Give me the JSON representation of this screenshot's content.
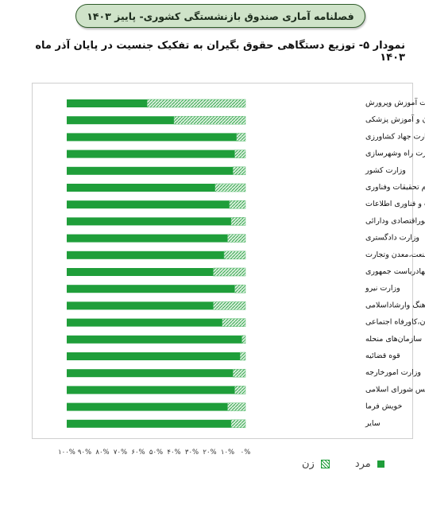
{
  "header": {
    "title": "فصلنامه آماری صندوق بازنشستگی کشوری- پاییز ۱۴۰۳"
  },
  "chart_data": {
    "type": "bar",
    "orientation": "horizontal",
    "stacked": "percent",
    "title": "نمودار ۵- توزیع دستگاهی حقوق بگیران به تفکیک جنسیت  در پایان آذر ماه ۱۴۰۳",
    "categories": [
      "وزارت آموزش وپرورش",
      "وزارت بهداشت، درمان و آموزش پزشکی",
      "وزارت جهاد کشاورزی",
      "وزارت راه وشهرسازی",
      "وزارت کشور",
      "وزارت علوم تحقیقات وفناوری",
      "وزارت ارتباطات و فناوری اطلاعات",
      "وزارت اموراقتصادی ودارائی",
      "وزارت دادگستری",
      "وزارت صنعت،معدن وتجارت",
      "نهادریاست جمهوری",
      "وزارت نیرو",
      "وزارت فرهنگ وارشاداسلامی",
      "وزارت تعاون،کاورفاه اجتماعی",
      "سازمان‌های منحله",
      "قوه قضائیه",
      "وزارت امورخارجه",
      "مجلس شورای اسلامی",
      "خویش فرما",
      "سایر"
    ],
    "series": [
      {
        "name": "مرد",
        "color": "#1f9e3a",
        "values": [
          45,
          60,
          95,
          94,
          93,
          83,
          91,
          92,
          90,
          88,
          82,
          94,
          82,
          87,
          98,
          97,
          93,
          94,
          90,
          92
        ]
      },
      {
        "name": "زن",
        "color": "#9fd3a8",
        "pattern": "hatched",
        "values": [
          55,
          40,
          5,
          6,
          7,
          17,
          9,
          8,
          10,
          12,
          18,
          6,
          18,
          13,
          2,
          3,
          7,
          6,
          10,
          8
        ]
      }
    ],
    "x_ticks": [
      "۰%",
      "۱۰%",
      "۲۰%",
      "۳۰%",
      "۴۰%",
      "۵۰%",
      "۶۰%",
      "۷۰%",
      "۸۰%",
      "۹۰%",
      "۱۰۰%"
    ],
    "x_direction": "right-to-left",
    "xlim": [
      0,
      100
    ],
    "legend_position": "bottom",
    "grid": false
  }
}
